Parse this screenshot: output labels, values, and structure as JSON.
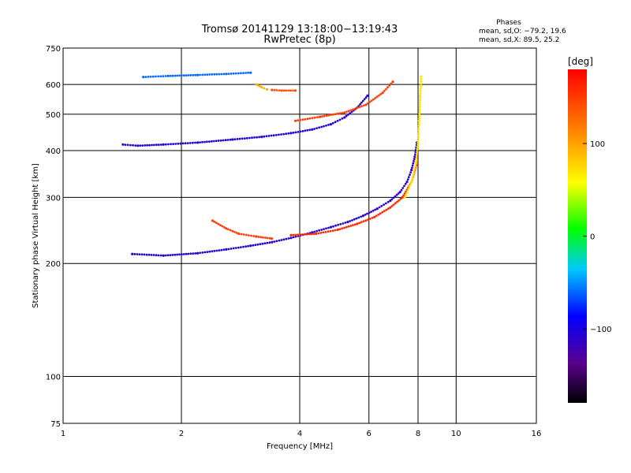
{
  "chart_data": {
    "type": "scatter",
    "title": "Tromsø 20141129 13:18:00−13:19:43",
    "subtitle": "RwPretec (8p)",
    "xlabel": "Frequency [MHz]",
    "ylabel": "Stationary phase Virtual Height [km]",
    "x_scale": "log",
    "y_scale": "log",
    "xlim": [
      1,
      16
    ],
    "ylim": [
      75,
      750
    ],
    "x_ticks": [
      1,
      2,
      4,
      6,
      8,
      10,
      16
    ],
    "x_tick_labels": [
      "1",
      "2",
      "4",
      "6",
      "8",
      "10",
      "16"
    ],
    "y_ticks": [
      75,
      100,
      200,
      300,
      400,
      500,
      600,
      750
    ],
    "y_tick_labels": [
      "75",
      "100",
      "200",
      "300",
      "400",
      "500",
      "600",
      "750"
    ],
    "grid": true,
    "stats_box": {
      "title": "Phases",
      "line_o": "mean, sd,O:  −79.2, 19.6",
      "line_x": "mean, sd,X:  89.5, 25.2"
    },
    "colorbar": {
      "label": "[deg]",
      "range": [
        -180,
        180
      ],
      "ticks": [
        100,
        0,
        -100
      ],
      "tick_labels": [
        "100",
        "0",
        "−100"
      ]
    },
    "traces": [
      {
        "phase": -110,
        "points": [
          [
            1.5,
            212
          ],
          [
            1.8,
            210
          ],
          [
            2.2,
            213
          ],
          [
            2.6,
            218
          ],
          [
            3.0,
            223
          ],
          [
            3.4,
            228
          ],
          [
            3.8,
            234
          ],
          [
            4.3,
            242
          ],
          [
            4.8,
            250
          ],
          [
            5.3,
            258
          ],
          [
            5.8,
            268
          ],
          [
            6.3,
            280
          ],
          [
            6.8,
            294
          ],
          [
            7.2,
            310
          ],
          [
            7.5,
            330
          ],
          [
            7.7,
            355
          ],
          [
            7.85,
            385
          ],
          [
            7.95,
            420
          ]
        ]
      },
      {
        "phase": 150,
        "points": [
          [
            2.4,
            260
          ],
          [
            2.6,
            248
          ],
          [
            2.8,
            240
          ],
          [
            3.1,
            236
          ],
          [
            3.4,
            233
          ]
        ]
      },
      {
        "phase": 160,
        "points": [
          [
            3.8,
            238
          ],
          [
            4.4,
            240
          ],
          [
            5.0,
            246
          ],
          [
            5.6,
            255
          ],
          [
            6.2,
            266
          ],
          [
            6.8,
            282
          ],
          [
            7.3,
            300
          ],
          [
            7.7,
            330
          ],
          [
            7.95,
            370
          ]
        ]
      },
      {
        "phase": 70,
        "points": [
          [
            7.4,
            300
          ],
          [
            7.7,
            330
          ],
          [
            7.9,
            370
          ],
          [
            8.0,
            420
          ],
          [
            8.05,
            480
          ],
          [
            8.1,
            560
          ],
          [
            8.15,
            630
          ]
        ]
      },
      {
        "phase": -105,
        "points": [
          [
            1.42,
            415
          ],
          [
            1.55,
            412
          ],
          [
            1.8,
            415
          ],
          [
            2.2,
            420
          ],
          [
            2.7,
            428
          ],
          [
            3.2,
            435
          ],
          [
            3.8,
            445
          ],
          [
            4.3,
            455
          ],
          [
            4.8,
            470
          ],
          [
            5.2,
            490
          ],
          [
            5.6,
            520
          ],
          [
            5.95,
            560
          ]
        ]
      },
      {
        "phase": 150,
        "points": [
          [
            3.9,
            480
          ],
          [
            4.5,
            492
          ],
          [
            5.2,
            505
          ],
          [
            5.9,
            530
          ],
          [
            6.5,
            570
          ],
          [
            6.9,
            610
          ]
        ]
      },
      {
        "phase": -60,
        "points": [
          [
            1.6,
            628
          ],
          [
            1.85,
            632
          ],
          [
            2.2,
            636
          ],
          [
            2.6,
            640
          ],
          [
            3.0,
            645
          ]
        ]
      },
      {
        "phase": 95,
        "points": [
          [
            3.1,
            600
          ],
          [
            3.2,
            590
          ],
          [
            3.3,
            582
          ]
        ]
      },
      {
        "phase": 140,
        "points": [
          [
            3.4,
            580
          ],
          [
            3.6,
            578
          ],
          [
            3.9,
            578
          ]
        ]
      }
    ]
  }
}
